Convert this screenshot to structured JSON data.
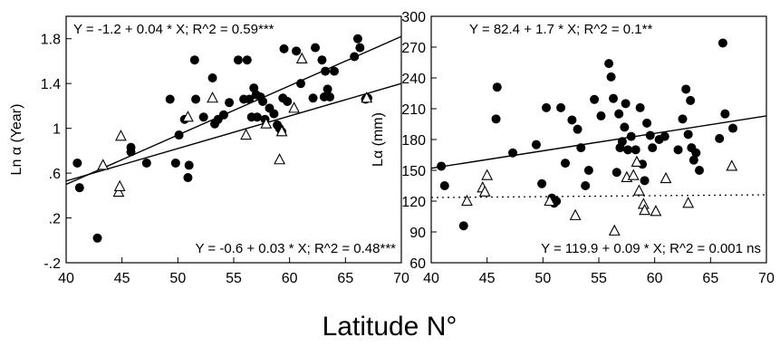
{
  "figure": {
    "shared_xlabel": "Latitude N°"
  },
  "chart_data": [
    {
      "type": "scatter",
      "ylabel": "Ln α (Year)",
      "xlim": [
        40,
        70
      ],
      "ylim": [
        -0.2,
        2.0
      ],
      "xticks": [
        40,
        45,
        50,
        55,
        60,
        65,
        70
      ],
      "yticks": [
        -0.2,
        0.2,
        0.6,
        1.0,
        1.4,
        1.8
      ],
      "ytick_labels": [
        "-.2",
        ".2",
        ".6",
        "1",
        "1.4",
        "1.8"
      ],
      "annotations": {
        "top": "Y = -1.2 + 0.04 * X; R^2 = 0.59***",
        "bottom": "Y = -0.6 + 0.03 * X; R^2 = 0.48***"
      },
      "lines": [
        {
          "x": [
            40,
            70
          ],
          "y": [
            0.5,
            1.82
          ]
        },
        {
          "x": [
            40,
            70
          ],
          "y": [
            0.53,
            1.4
          ]
        }
      ],
      "series": [
        {
          "marker": "filled-circle",
          "points": [
            [
              41,
              0.69
            ],
            [
              41.2,
              0.47
            ],
            [
              42.8,
              0.02
            ],
            [
              45.8,
              0.83
            ],
            [
              45.8,
              0.79
            ],
            [
              47.2,
              0.69
            ],
            [
              49.3,
              1.26
            ],
            [
              49.8,
              0.69
            ],
            [
              50.1,
              0.94
            ],
            [
              50.6,
              1.08
            ],
            [
              50.9,
              0.56
            ],
            [
              51.0,
              0.67
            ],
            [
              51.5,
              1.61
            ],
            [
              51.6,
              1.26
            ],
            [
              52.3,
              1.1
            ],
            [
              53.1,
              1.45
            ],
            [
              53.3,
              1.04
            ],
            [
              53.6,
              1.08
            ],
            [
              54.1,
              1.12
            ],
            [
              54.6,
              1.23
            ],
            [
              55.4,
              1.61
            ],
            [
              55.9,
              1.26
            ],
            [
              56.2,
              1.61
            ],
            [
              56.4,
              1.26
            ],
            [
              56.6,
              1.1
            ],
            [
              56.8,
              1.36
            ],
            [
              57.0,
              1.3
            ],
            [
              57.1,
              1.1
            ],
            [
              57.4,
              1.28
            ],
            [
              57.6,
              1.24
            ],
            [
              57.8,
              1.08
            ],
            [
              58.2,
              1.18
            ],
            [
              58.6,
              1.13
            ],
            [
              58.9,
              1.03
            ],
            [
              59.1,
              1.0
            ],
            [
              59.3,
              0.97
            ],
            [
              59.4,
              1.27
            ],
            [
              59.5,
              1.71
            ],
            [
              59.8,
              1.24
            ],
            [
              60.6,
              1.69
            ],
            [
              61.0,
              1.4
            ],
            [
              62.1,
              1.27
            ],
            [
              62.3,
              1.72
            ],
            [
              62.9,
              1.61
            ],
            [
              63.1,
              1.28
            ],
            [
              63.2,
              1.51
            ],
            [
              63.4,
              1.35
            ],
            [
              63.6,
              1.28
            ],
            [
              64.0,
              1.51
            ],
            [
              65.8,
              1.64
            ],
            [
              66.1,
              1.8
            ],
            [
              66.3,
              1.72
            ],
            [
              66.8,
              1.26
            ],
            [
              67.0,
              1.27
            ]
          ]
        },
        {
          "marker": "open-triangle",
          "points": [
            [
              43.3,
              0.67
            ],
            [
              44.7,
              0.43
            ],
            [
              44.8,
              0.48
            ],
            [
              44.9,
              0.93
            ],
            [
              50.9,
              1.1
            ],
            [
              53.1,
              1.27
            ],
            [
              56.1,
              0.94
            ],
            [
              57.9,
              1.04
            ],
            [
              59.1,
              0.72
            ],
            [
              59.3,
              0.97
            ],
            [
              60.4,
              1.18
            ],
            [
              61.1,
              1.62
            ],
            [
              66.9,
              1.27
            ]
          ]
        }
      ]
    },
    {
      "type": "scatter",
      "ylabel": "Lα (mm)",
      "xlim": [
        40,
        70
      ],
      "ylim": [
        60,
        300
      ],
      "xticks": [
        40,
        45,
        50,
        55,
        60,
        65,
        70
      ],
      "yticks": [
        60,
        90,
        120,
        150,
        180,
        210,
        240,
        270,
        300
      ],
      "ytick_labels": [
        "60",
        "90",
        "120",
        "150",
        "180",
        "210",
        "240",
        "270",
        "300"
      ],
      "annotations": {
        "top": "Y = 82.4 + 1.7 * X; R^2 = 0.1**",
        "bottom": "Y = 119.9 + 0.09 * X; R^2 = 0.001 ns"
      },
      "lines": [
        {
          "x": [
            40,
            70
          ],
          "y": [
            152,
            203
          ],
          "style": "solid"
        },
        {
          "x": [
            40,
            70
          ],
          "y": [
            123.5,
            126.2
          ],
          "style": "dotted"
        }
      ],
      "series": [
        {
          "marker": "filled-circle",
          "points": [
            [
              40.9,
              154
            ],
            [
              41.2,
              135
            ],
            [
              42.9,
              96
            ],
            [
              45.8,
              200
            ],
            [
              45.9,
              231
            ],
            [
              47.3,
              167
            ],
            [
              49.4,
              175
            ],
            [
              49.9,
              137
            ],
            [
              50.3,
              211
            ],
            [
              50.8,
              123
            ],
            [
              51.0,
              118
            ],
            [
              51.2,
              120
            ],
            [
              51.6,
              211
            ],
            [
              52.0,
              157
            ],
            [
              52.6,
              199
            ],
            [
              53.1,
              190
            ],
            [
              53.4,
              172
            ],
            [
              53.8,
              135
            ],
            [
              54.1,
              150
            ],
            [
              54.6,
              219
            ],
            [
              55.2,
              203
            ],
            [
              55.9,
              254
            ],
            [
              56.1,
              241
            ],
            [
              56.3,
              220
            ],
            [
              56.6,
              148
            ],
            [
              56.8,
              205
            ],
            [
              56.9,
              172
            ],
            [
              57.1,
              178
            ],
            [
              57.3,
              192
            ],
            [
              57.4,
              215
            ],
            [
              57.6,
              170
            ],
            [
              57.9,
              183
            ],
            [
              58.3,
              170
            ],
            [
              58.7,
              211
            ],
            [
              58.9,
              156
            ],
            [
              59.1,
              140
            ],
            [
              59.3,
              196
            ],
            [
              59.6,
              184
            ],
            [
              59.8,
              172
            ],
            [
              60.4,
              180
            ],
            [
              60.9,
              183
            ],
            [
              62.1,
              170
            ],
            [
              62.5,
              200
            ],
            [
              62.8,
              229
            ],
            [
              63.0,
              185
            ],
            [
              63.2,
              218
            ],
            [
              63.3,
              172
            ],
            [
              63.5,
              160
            ],
            [
              63.7,
              167
            ],
            [
              64.0,
              150
            ],
            [
              65.8,
              181
            ],
            [
              66.1,
              274
            ],
            [
              66.3,
              205
            ],
            [
              67.0,
              191
            ]
          ]
        },
        {
          "marker": "open-triangle",
          "points": [
            [
              43.2,
              120
            ],
            [
              44.6,
              133
            ],
            [
              44.8,
              129
            ],
            [
              45.0,
              145
            ],
            [
              50.6,
              120
            ],
            [
              52.9,
              106
            ],
            [
              56.4,
              91
            ],
            [
              57.5,
              143
            ],
            [
              58.1,
              145
            ],
            [
              58.4,
              158
            ],
            [
              58.6,
              130
            ],
            [
              59.0,
              117
            ],
            [
              59.1,
              111
            ],
            [
              60.1,
              110
            ],
            [
              61.0,
              142
            ],
            [
              63.0,
              118
            ],
            [
              66.9,
              154
            ]
          ]
        }
      ]
    }
  ]
}
